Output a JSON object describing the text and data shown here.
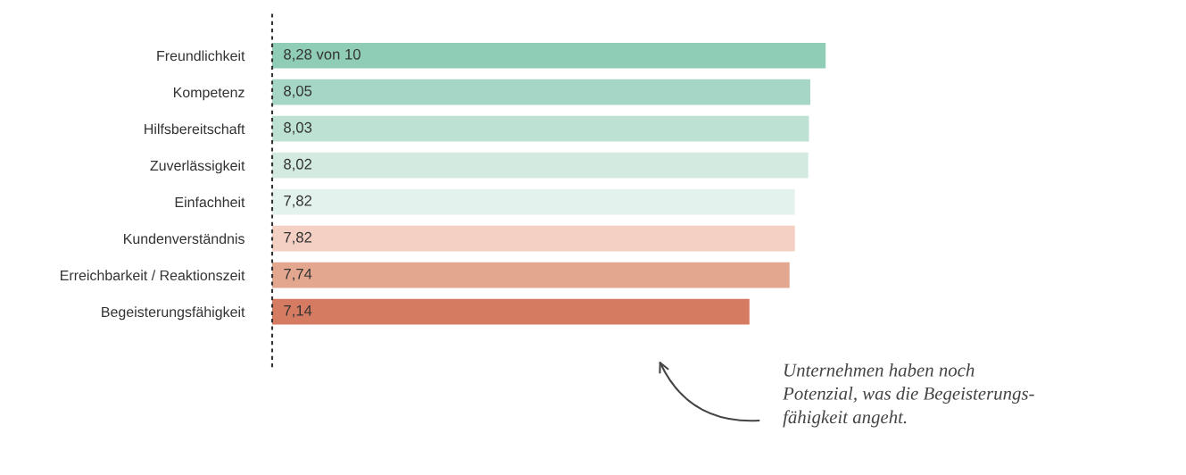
{
  "chart_data": {
    "type": "bar",
    "orientation": "horizontal",
    "categories": [
      "Freundlichkeit",
      "Kompetenz",
      "Hilfsbereitschaft",
      "Zuverlässigkeit",
      "Einfachheit",
      "Kundenverständnis",
      "Erreichbarkeit / Reaktionszeit",
      "Begeisterungsfähigkeit"
    ],
    "values": [
      8.28,
      8.05,
      8.03,
      8.02,
      7.82,
      7.82,
      7.74,
      7.14
    ],
    "value_labels": [
      "8,28 von 10",
      "8,05",
      "8,03",
      "8,02",
      "7,82",
      "7,82",
      "7,74",
      "7,14"
    ],
    "colors": [
      "#8fcdb7",
      "#a6d6c5",
      "#bde2d4",
      "#d3eae1",
      "#e4f2ed",
      "#f3d0c3",
      "#e3a68e",
      "#d57b62"
    ],
    "grid": false,
    "legend": false,
    "tick_labels": "y",
    "annotations": [
      "Unternehmen haben noch\nPotenzial, was die Begeisterungs-\nfähigkeit angeht."
    ]
  }
}
